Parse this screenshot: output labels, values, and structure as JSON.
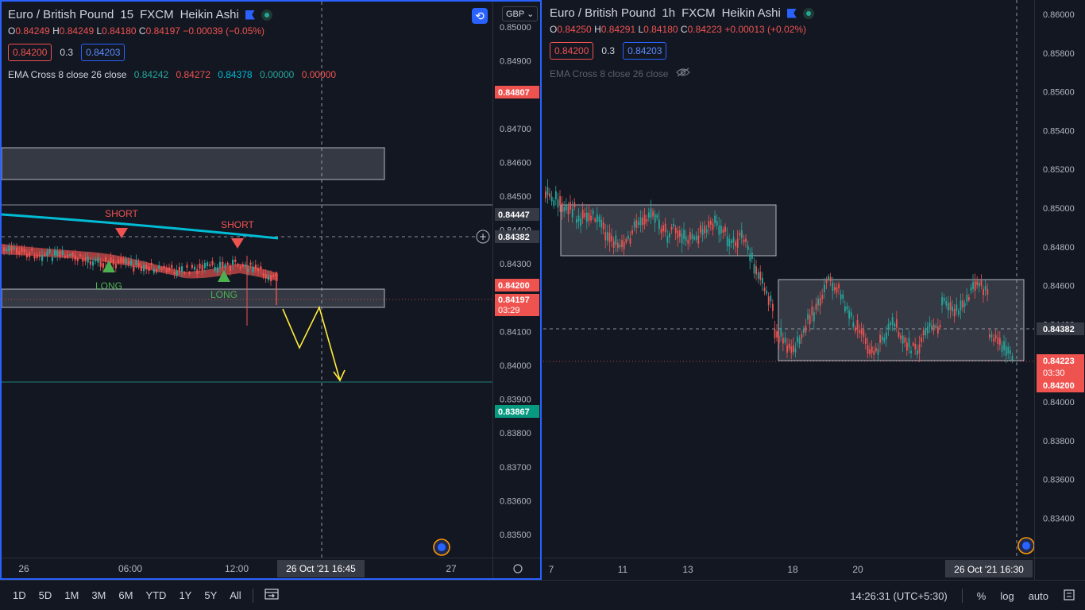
{
  "left": {
    "title": {
      "symbol": "Euro / British Pound",
      "interval": "15",
      "exchange": "FXCM",
      "style": "Heikin Ashi"
    },
    "ohlc": {
      "o_label": "O",
      "o": "0.84249",
      "h_label": "H",
      "h": "0.84249",
      "l_label": "L",
      "l": "0.84180",
      "c_label": "C",
      "c": "0.84197",
      "change": "−0.00039 (−0.05%)"
    },
    "bid": "0.84200",
    "spread": "0.3",
    "ask": "0.84203",
    "indicator": {
      "name": "EMA Cross 8 close 26 close",
      "v1": "0.84242",
      "v2": "0.84272",
      "v3": "0.84378",
      "v4": "0.00000",
      "v5": "0.00000"
    },
    "currency_button": "GBP",
    "price_ticks": [
      "0.85000",
      "0.84900",
      "0.84800",
      "0.84700",
      "0.84600",
      "0.84500",
      "0.84400",
      "0.84300",
      "0.84200",
      "0.84100",
      "0.84000",
      "0.83900",
      "0.83800",
      "0.83700",
      "0.83600",
      "0.83500"
    ],
    "price_tags": {
      "high_line": "0.84807",
      "ema_slow": "0.84447",
      "crosshair": "0.84382",
      "bid": "0.84200",
      "last": "0.84197",
      "countdown": "03:29",
      "low_line": "0.83867"
    },
    "time_ticks": [
      "26",
      "06:00",
      "12:00",
      "27"
    ],
    "crosshair_time": "26 Oct '21   16:45",
    "labels": {
      "short1": "SHORT",
      "short2": "SHORT",
      "long1": "LONG",
      "long2": "LONG"
    },
    "colors": {
      "up": "#26a69a",
      "down": "#ef5350",
      "ema_slow": "#00bcd4",
      "arrow": "#ffeb3b",
      "accent": "#2962ff"
    }
  },
  "right": {
    "title": {
      "symbol": "Euro / British Pound",
      "interval": "1h",
      "exchange": "FXCM",
      "style": "Heikin Ashi"
    },
    "ohlc": {
      "o_label": "O",
      "o": "0.84250",
      "h_label": "H",
      "h": "0.84291",
      "l_label": "L",
      "l": "0.84180",
      "c_label": "C",
      "c": "0.84223",
      "change": "+0.00013 (+0.02%)"
    },
    "bid": "0.84200",
    "spread": "0.3",
    "ask": "0.84203",
    "indicator": {
      "name": "EMA Cross 8 close 26 close"
    },
    "price_ticks": [
      "0.86000",
      "0.85800",
      "0.85600",
      "0.85400",
      "0.85200",
      "0.85000",
      "0.84800",
      "0.84600",
      "0.84400",
      "0.84200",
      "0.84000",
      "0.83800",
      "0.83600",
      "0.83400"
    ],
    "price_tags": {
      "crosshair": "0.84382",
      "last": "0.84223",
      "countdown": "03:30",
      "bid": "0.84200"
    },
    "time_ticks": [
      "7",
      "11",
      "13",
      "18",
      "20"
    ],
    "crosshair_time": "26 Oct '21   16:30"
  },
  "bottom": {
    "ranges": [
      "1D",
      "5D",
      "1M",
      "3M",
      "6M",
      "YTD",
      "1Y",
      "5Y",
      "All"
    ],
    "clock": "14:26:31 (UTC+5:30)",
    "percent": "%",
    "log": "log",
    "auto": "auto"
  }
}
